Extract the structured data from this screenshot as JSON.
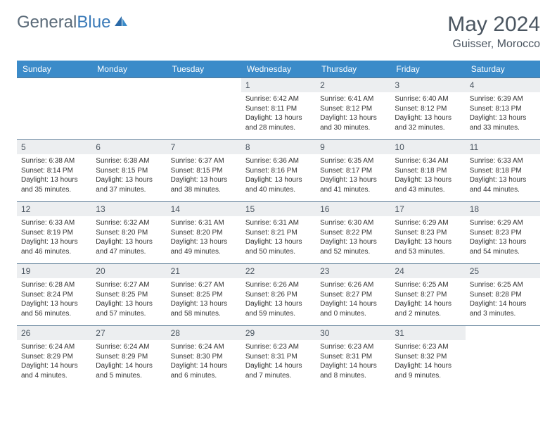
{
  "brand": {
    "part1": "General",
    "part2": "Blue"
  },
  "title": "May 2024",
  "location": "Guisser, Morocco",
  "colors": {
    "header_bg": "#3b8bc9",
    "header_text": "#ffffff",
    "daynum_bg": "#eceef0",
    "text": "#4a5560",
    "row_border": "#5a7a95",
    "logo_gray": "#5a6a78",
    "logo_blue": "#3a7ab8"
  },
  "weekdays": [
    "Sunday",
    "Monday",
    "Tuesday",
    "Wednesday",
    "Thursday",
    "Friday",
    "Saturday"
  ],
  "weeks": [
    [
      null,
      null,
      null,
      {
        "n": "1",
        "sr": "6:42 AM",
        "ss": "8:11 PM",
        "dl": "13 hours and 28 minutes."
      },
      {
        "n": "2",
        "sr": "6:41 AM",
        "ss": "8:12 PM",
        "dl": "13 hours and 30 minutes."
      },
      {
        "n": "3",
        "sr": "6:40 AM",
        "ss": "8:12 PM",
        "dl": "13 hours and 32 minutes."
      },
      {
        "n": "4",
        "sr": "6:39 AM",
        "ss": "8:13 PM",
        "dl": "13 hours and 33 minutes."
      }
    ],
    [
      {
        "n": "5",
        "sr": "6:38 AM",
        "ss": "8:14 PM",
        "dl": "13 hours and 35 minutes."
      },
      {
        "n": "6",
        "sr": "6:38 AM",
        "ss": "8:15 PM",
        "dl": "13 hours and 37 minutes."
      },
      {
        "n": "7",
        "sr": "6:37 AM",
        "ss": "8:15 PM",
        "dl": "13 hours and 38 minutes."
      },
      {
        "n": "8",
        "sr": "6:36 AM",
        "ss": "8:16 PM",
        "dl": "13 hours and 40 minutes."
      },
      {
        "n": "9",
        "sr": "6:35 AM",
        "ss": "8:17 PM",
        "dl": "13 hours and 41 minutes."
      },
      {
        "n": "10",
        "sr": "6:34 AM",
        "ss": "8:18 PM",
        "dl": "13 hours and 43 minutes."
      },
      {
        "n": "11",
        "sr": "6:33 AM",
        "ss": "8:18 PM",
        "dl": "13 hours and 44 minutes."
      }
    ],
    [
      {
        "n": "12",
        "sr": "6:33 AM",
        "ss": "8:19 PM",
        "dl": "13 hours and 46 minutes."
      },
      {
        "n": "13",
        "sr": "6:32 AM",
        "ss": "8:20 PM",
        "dl": "13 hours and 47 minutes."
      },
      {
        "n": "14",
        "sr": "6:31 AM",
        "ss": "8:20 PM",
        "dl": "13 hours and 49 minutes."
      },
      {
        "n": "15",
        "sr": "6:31 AM",
        "ss": "8:21 PM",
        "dl": "13 hours and 50 minutes."
      },
      {
        "n": "16",
        "sr": "6:30 AM",
        "ss": "8:22 PM",
        "dl": "13 hours and 52 minutes."
      },
      {
        "n": "17",
        "sr": "6:29 AM",
        "ss": "8:23 PM",
        "dl": "13 hours and 53 minutes."
      },
      {
        "n": "18",
        "sr": "6:29 AM",
        "ss": "8:23 PM",
        "dl": "13 hours and 54 minutes."
      }
    ],
    [
      {
        "n": "19",
        "sr": "6:28 AM",
        "ss": "8:24 PM",
        "dl": "13 hours and 56 minutes."
      },
      {
        "n": "20",
        "sr": "6:27 AM",
        "ss": "8:25 PM",
        "dl": "13 hours and 57 minutes."
      },
      {
        "n": "21",
        "sr": "6:27 AM",
        "ss": "8:25 PM",
        "dl": "13 hours and 58 minutes."
      },
      {
        "n": "22",
        "sr": "6:26 AM",
        "ss": "8:26 PM",
        "dl": "13 hours and 59 minutes."
      },
      {
        "n": "23",
        "sr": "6:26 AM",
        "ss": "8:27 PM",
        "dl": "14 hours and 0 minutes."
      },
      {
        "n": "24",
        "sr": "6:25 AM",
        "ss": "8:27 PM",
        "dl": "14 hours and 2 minutes."
      },
      {
        "n": "25",
        "sr": "6:25 AM",
        "ss": "8:28 PM",
        "dl": "14 hours and 3 minutes."
      }
    ],
    [
      {
        "n": "26",
        "sr": "6:24 AM",
        "ss": "8:29 PM",
        "dl": "14 hours and 4 minutes."
      },
      {
        "n": "27",
        "sr": "6:24 AM",
        "ss": "8:29 PM",
        "dl": "14 hours and 5 minutes."
      },
      {
        "n": "28",
        "sr": "6:24 AM",
        "ss": "8:30 PM",
        "dl": "14 hours and 6 minutes."
      },
      {
        "n": "29",
        "sr": "6:23 AM",
        "ss": "8:31 PM",
        "dl": "14 hours and 7 minutes."
      },
      {
        "n": "30",
        "sr": "6:23 AM",
        "ss": "8:31 PM",
        "dl": "14 hours and 8 minutes."
      },
      {
        "n": "31",
        "sr": "6:23 AM",
        "ss": "8:32 PM",
        "dl": "14 hours and 9 minutes."
      },
      null
    ]
  ]
}
